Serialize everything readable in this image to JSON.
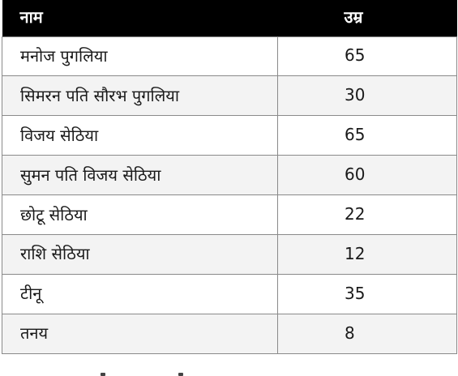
{
  "table": {
    "headers": {
      "name": "नाम",
      "age": "उम्र"
    },
    "rows": [
      {
        "name": "मनोज पुगलिया",
        "age": "65"
      },
      {
        "name": "सिमरन पति सौरभ पुगलिया",
        "age": "30"
      },
      {
        "name": "विजय सेठिया",
        "age": "65"
      },
      {
        "name": "सुमन पति विजय सेठिया",
        "age": "60"
      },
      {
        "name": "छोटू सेठिया",
        "age": "22"
      },
      {
        "name": "राशि सेठिया",
        "age": "12"
      },
      {
        "name": "टीनू",
        "age": "35"
      },
      {
        "name": "तनय",
        "age": "8"
      }
    ]
  }
}
